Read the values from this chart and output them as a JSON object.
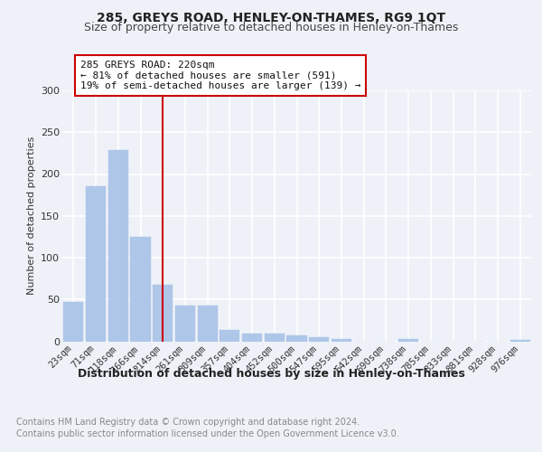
{
  "title": "285, GREYS ROAD, HENLEY-ON-THAMES, RG9 1QT",
  "subtitle": "Size of property relative to detached houses in Henley-on-Thames",
  "xlabel": "Distribution of detached houses by size in Henley-on-Thames",
  "ylabel": "Number of detached properties",
  "categories": [
    "23sqm",
    "71sqm",
    "118sqm",
    "166sqm",
    "214sqm",
    "261sqm",
    "309sqm",
    "357sqm",
    "404sqm",
    "452sqm",
    "500sqm",
    "547sqm",
    "595sqm",
    "642sqm",
    "690sqm",
    "738sqm",
    "785sqm",
    "833sqm",
    "881sqm",
    "928sqm",
    "976sqm"
  ],
  "values": [
    47,
    185,
    229,
    125,
    68,
    43,
    43,
    14,
    9,
    9,
    7,
    5,
    3,
    0,
    0,
    3,
    0,
    0,
    0,
    0,
    2
  ],
  "bar_color": "#aec6e8",
  "bar_edge_color": "#aec6e8",
  "annotation_text": "285 GREYS ROAD: 220sqm\n← 81% of detached houses are smaller (591)\n19% of semi-detached houses are larger (139) →",
  "annotation_box_color": "#cc0000",
  "ylim": [
    0,
    300
  ],
  "yticks": [
    0,
    50,
    100,
    150,
    200,
    250,
    300
  ],
  "footer_line1": "Contains HM Land Registry data © Crown copyright and database right 2024.",
  "footer_line2": "Contains public sector information licensed under the Open Government Licence v3.0.",
  "bg_color": "#eef2f8",
  "plot_bg_color": "#eef2f8",
  "grid_color": "#ffffff",
  "title_fontsize": 10,
  "subtitle_fontsize": 9,
  "footer_fontsize": 7,
  "ylabel_fontsize": 8,
  "xlabel_fontsize": 9,
  "tick_fontsize": 7.5,
  "ann_fontsize": 8,
  "line_x_index": 4.0
}
